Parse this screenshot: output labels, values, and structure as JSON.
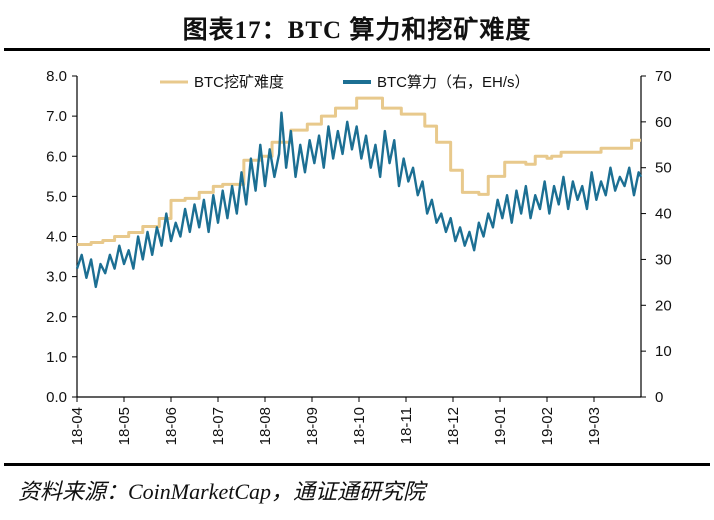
{
  "title": "图表17：BTC 算力和挖矿难度",
  "source": "资料来源：CoinMarketCap，通证通研究院",
  "colors": {
    "difficulty": "#e8c98c",
    "hashrate": "#1c6f93",
    "axis": "#000000"
  },
  "chart_data": {
    "type": "line",
    "x_ticks": [
      "18-04",
      "18-05",
      "18-06",
      "18-07",
      "18-08",
      "18-09",
      "18-10",
      "18-11",
      "18-12",
      "19-01",
      "19-02",
      "19-03"
    ],
    "x_range": [
      0,
      12
    ],
    "y_left": {
      "ticks": [
        "0.0",
        "1.0",
        "2.0",
        "3.0",
        "4.0",
        "5.0",
        "6.0",
        "7.0",
        "8.0"
      ],
      "range": [
        0,
        8
      ]
    },
    "y_right": {
      "ticks": [
        "0",
        "10",
        "20",
        "30",
        "40",
        "50",
        "60",
        "70"
      ],
      "range": [
        0,
        70
      ]
    },
    "grid": false,
    "legend_position": "top",
    "series": [
      {
        "name": "BTC挖矿难度",
        "axis": "left",
        "style": "step",
        "points": [
          [
            0.0,
            3.8
          ],
          [
            0.3,
            3.85
          ],
          [
            0.55,
            3.9
          ],
          [
            0.8,
            4.0
          ],
          [
            1.1,
            4.1
          ],
          [
            1.4,
            4.25
          ],
          [
            1.75,
            4.45
          ],
          [
            2.0,
            4.9
          ],
          [
            2.3,
            4.95
          ],
          [
            2.6,
            5.1
          ],
          [
            2.9,
            5.25
          ],
          [
            3.1,
            5.3
          ],
          [
            3.5,
            5.3
          ],
          [
            3.55,
            5.9
          ],
          [
            3.9,
            6.0
          ],
          [
            4.15,
            6.35
          ],
          [
            4.55,
            6.65
          ],
          [
            4.9,
            6.8
          ],
          [
            5.2,
            7.0
          ],
          [
            5.5,
            7.2
          ],
          [
            5.95,
            7.45
          ],
          [
            6.2,
            7.45
          ],
          [
            6.5,
            7.2
          ],
          [
            6.9,
            7.05
          ],
          [
            7.4,
            6.75
          ],
          [
            7.65,
            6.35
          ],
          [
            7.95,
            5.65
          ],
          [
            8.2,
            5.1
          ],
          [
            8.55,
            5.05
          ],
          [
            8.75,
            5.5
          ],
          [
            9.05,
            5.5
          ],
          [
            9.1,
            5.85
          ],
          [
            9.55,
            5.8
          ],
          [
            9.75,
            6.0
          ],
          [
            10.0,
            5.95
          ],
          [
            10.1,
            6.0
          ],
          [
            10.3,
            6.1
          ],
          [
            10.6,
            6.1
          ],
          [
            11.0,
            6.1
          ],
          [
            11.15,
            6.2
          ],
          [
            11.6,
            6.2
          ],
          [
            11.8,
            6.4
          ],
          [
            12.0,
            6.4
          ]
        ]
      },
      {
        "name": "BTC算力（右，EH/s）",
        "axis": "right",
        "style": "line",
        "points": [
          [
            0.0,
            28
          ],
          [
            0.1,
            31
          ],
          [
            0.2,
            26
          ],
          [
            0.3,
            30
          ],
          [
            0.4,
            24
          ],
          [
            0.5,
            29
          ],
          [
            0.6,
            27
          ],
          [
            0.7,
            31
          ],
          [
            0.8,
            28
          ],
          [
            0.9,
            33
          ],
          [
            1.0,
            29
          ],
          [
            1.1,
            32
          ],
          [
            1.2,
            28
          ],
          [
            1.3,
            35
          ],
          [
            1.4,
            30
          ],
          [
            1.5,
            36
          ],
          [
            1.6,
            31
          ],
          [
            1.7,
            37
          ],
          [
            1.8,
            33
          ],
          [
            1.9,
            40
          ],
          [
            2.0,
            34
          ],
          [
            2.1,
            38
          ],
          [
            2.2,
            35
          ],
          [
            2.3,
            41
          ],
          [
            2.4,
            36
          ],
          [
            2.5,
            42
          ],
          [
            2.6,
            37
          ],
          [
            2.7,
            43
          ],
          [
            2.8,
            36
          ],
          [
            2.9,
            44
          ],
          [
            3.0,
            38
          ],
          [
            3.1,
            45
          ],
          [
            3.2,
            39
          ],
          [
            3.3,
            46
          ],
          [
            3.4,
            40
          ],
          [
            3.5,
            49
          ],
          [
            3.6,
            42
          ],
          [
            3.7,
            52
          ],
          [
            3.8,
            45
          ],
          [
            3.9,
            55
          ],
          [
            4.0,
            46
          ],
          [
            4.1,
            54
          ],
          [
            4.2,
            48
          ],
          [
            4.3,
            53
          ],
          [
            4.35,
            62
          ],
          [
            4.45,
            50
          ],
          [
            4.55,
            58
          ],
          [
            4.65,
            48
          ],
          [
            4.75,
            55
          ],
          [
            4.85,
            49
          ],
          [
            4.95,
            56
          ],
          [
            5.05,
            51
          ],
          [
            5.15,
            57
          ],
          [
            5.25,
            50
          ],
          [
            5.35,
            59
          ],
          [
            5.45,
            52
          ],
          [
            5.55,
            58
          ],
          [
            5.65,
            53
          ],
          [
            5.75,
            60
          ],
          [
            5.85,
            54
          ],
          [
            5.95,
            59
          ],
          [
            6.05,
            52
          ],
          [
            6.15,
            57
          ],
          [
            6.25,
            50
          ],
          [
            6.35,
            55
          ],
          [
            6.45,
            48
          ],
          [
            6.55,
            58
          ],
          [
            6.65,
            51
          ],
          [
            6.75,
            56
          ],
          [
            6.85,
            46
          ],
          [
            6.95,
            52
          ],
          [
            7.05,
            47
          ],
          [
            7.15,
            50
          ],
          [
            7.25,
            44
          ],
          [
            7.35,
            47
          ],
          [
            7.45,
            40
          ],
          [
            7.55,
            43
          ],
          [
            7.65,
            38
          ],
          [
            7.75,
            40
          ],
          [
            7.85,
            36
          ],
          [
            7.95,
            39
          ],
          [
            8.05,
            34
          ],
          [
            8.15,
            37
          ],
          [
            8.25,
            33
          ],
          [
            8.35,
            36
          ],
          [
            8.45,
            32
          ],
          [
            8.55,
            38
          ],
          [
            8.65,
            35
          ],
          [
            8.75,
            40
          ],
          [
            8.85,
            37
          ],
          [
            8.95,
            43
          ],
          [
            9.05,
            39
          ],
          [
            9.15,
            44
          ],
          [
            9.25,
            38
          ],
          [
            9.35,
            45
          ],
          [
            9.45,
            40
          ],
          [
            9.55,
            46
          ],
          [
            9.65,
            39
          ],
          [
            9.75,
            44
          ],
          [
            9.85,
            41
          ],
          [
            9.95,
            47
          ],
          [
            10.05,
            40
          ],
          [
            10.15,
            46
          ],
          [
            10.25,
            42
          ],
          [
            10.35,
            48
          ],
          [
            10.45,
            41
          ],
          [
            10.55,
            47
          ],
          [
            10.65,
            43
          ],
          [
            10.75,
            46
          ],
          [
            10.85,
            41
          ],
          [
            10.95,
            49
          ],
          [
            11.05,
            43
          ],
          [
            11.15,
            47
          ],
          [
            11.25,
            44
          ],
          [
            11.35,
            50
          ],
          [
            11.45,
            45
          ],
          [
            11.55,
            48
          ],
          [
            11.65,
            46
          ],
          [
            11.75,
            50
          ],
          [
            11.85,
            44
          ],
          [
            11.95,
            49
          ],
          [
            12.0,
            48
          ]
        ]
      }
    ]
  }
}
